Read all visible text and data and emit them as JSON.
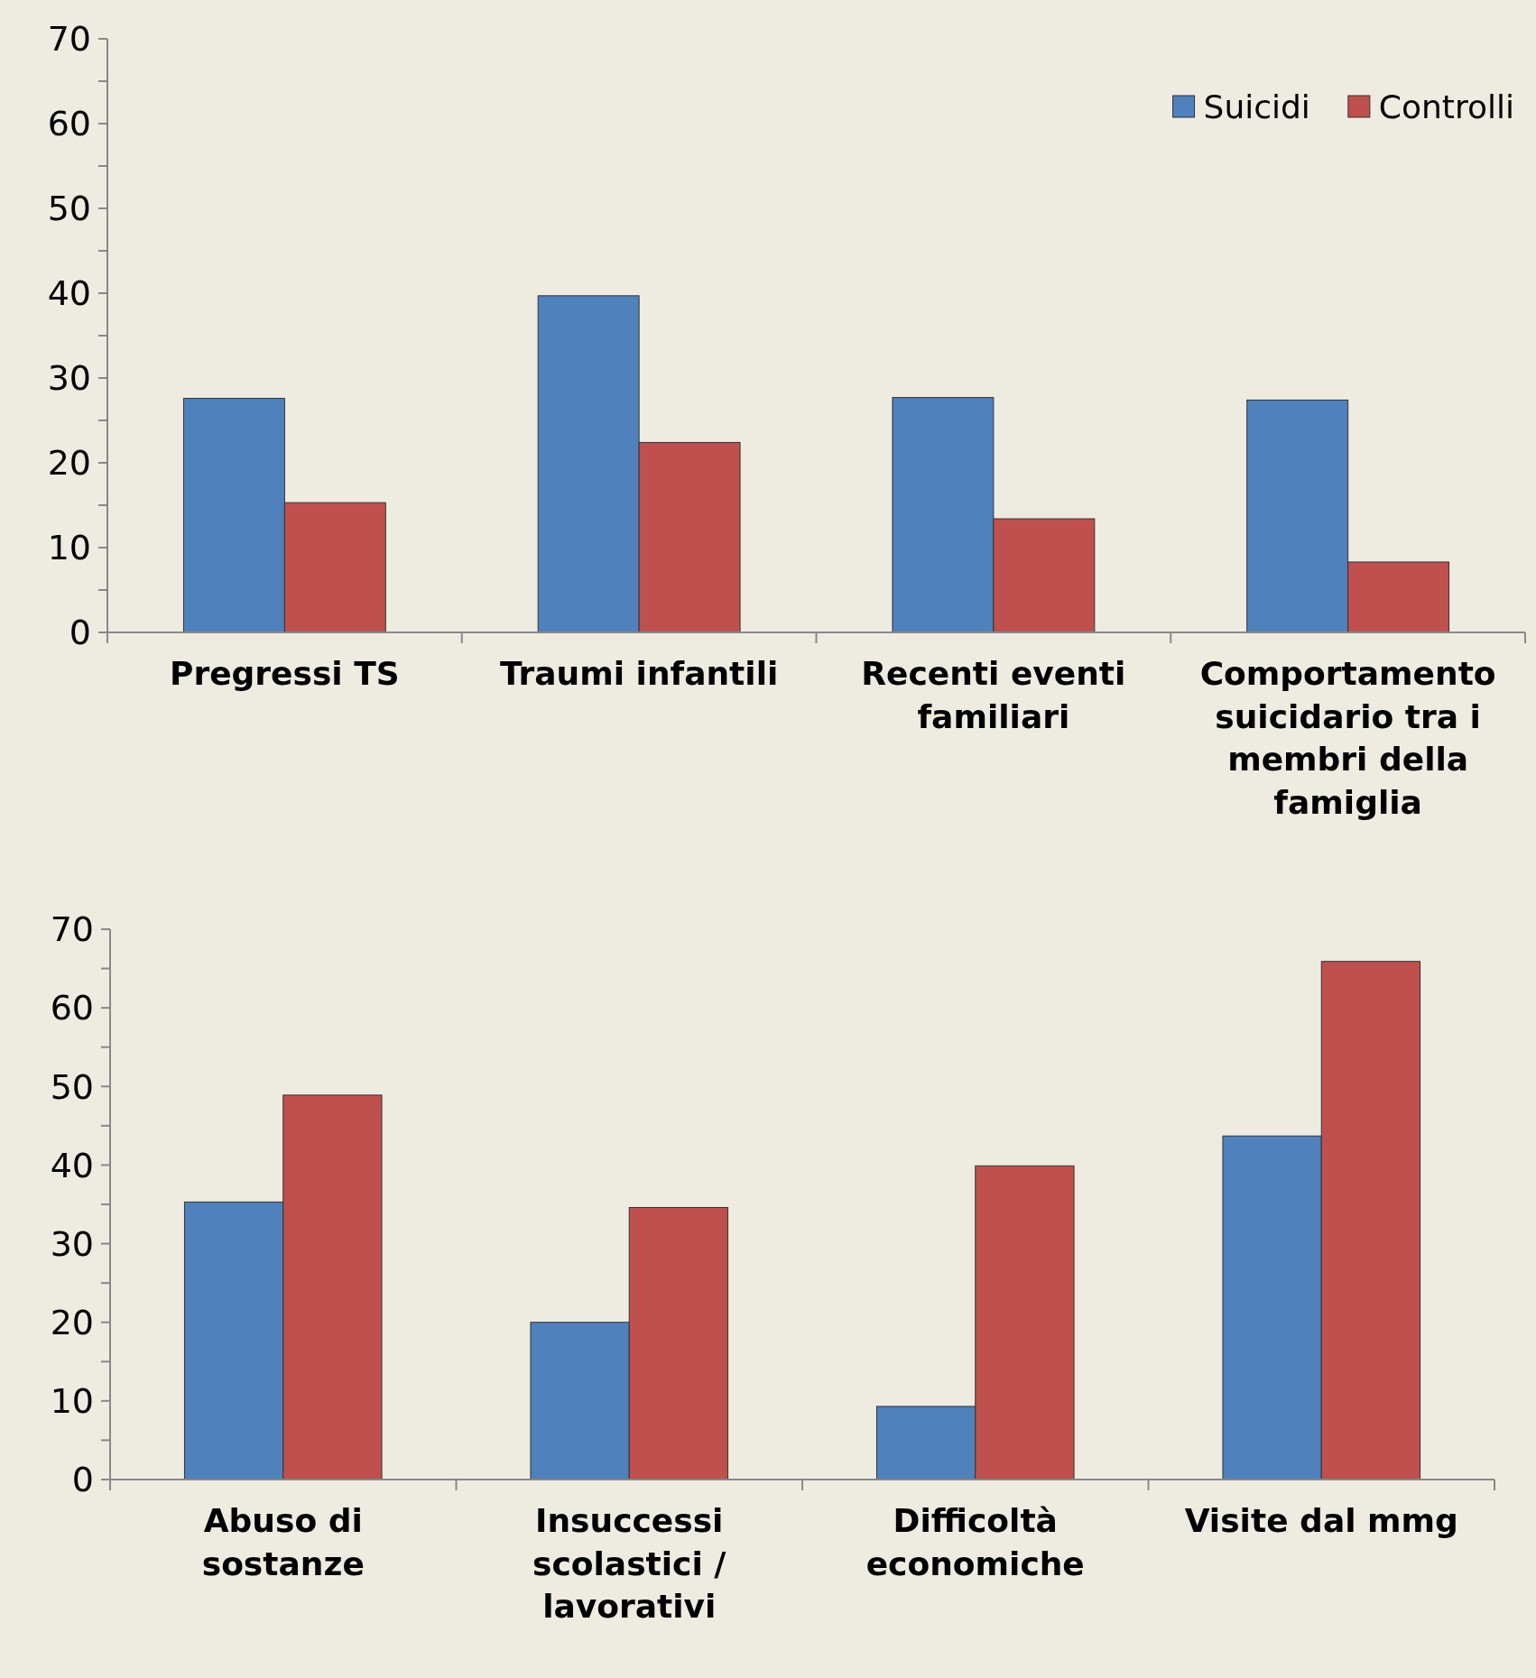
{
  "chart_data": [
    {
      "type": "bar",
      "categories": [
        "Pregressi TS",
        "Traumi infantili",
        "Recenti eventi familiari",
        "Comportamento suicidario tra i membri della famiglia"
      ],
      "series": [
        {
          "name": "Suicidi",
          "color": "#4f81bd",
          "values": [
            27.6,
            39.7,
            27.7,
            27.4
          ]
        },
        {
          "name": "Controlli",
          "color": "#c0504d",
          "values": [
            15.3,
            22.4,
            13.4,
            8.3
          ]
        }
      ],
      "ylim": [
        0,
        70
      ],
      "yticks": [
        0,
        {
          "value": 5,
          "label": null
        },
        10,
        {
          "value": 15,
          "label": null
        },
        20,
        {
          "value": 25,
          "label": null
        },
        30,
        {
          "value": 35,
          "label": null
        },
        40,
        {
          "value": 45,
          "label": null
        },
        50,
        {
          "value": 55,
          "label": null
        },
        60,
        {
          "value": 65,
          "label": null
        },
        70
      ],
      "legend": "top right",
      "grid": false
    },
    {
      "type": "bar",
      "categories": [
        "Abuso di sostanze",
        "Insuccessi scolastici / lavorativi",
        "Difficoltà economiche",
        "Visite dal mmg"
      ],
      "series": [
        {
          "color": "#4f81bd",
          "values": [
            35.3,
            20.0,
            9.3,
            43.7
          ]
        },
        {
          "color": "#c0504d",
          "values": [
            48.9,
            34.6,
            39.9,
            65.9
          ]
        }
      ],
      "ylim": [
        0,
        70
      ],
      "yticks": [
        0,
        {
          "value": 5,
          "label": null
        },
        10,
        {
          "value": 15,
          "label": null
        },
        20,
        {
          "value": 25,
          "label": null
        },
        30,
        {
          "value": 35,
          "label": null
        },
        40,
        {
          "value": 45,
          "label": null
        },
        50,
        {
          "value": 55,
          "label": null
        },
        60,
        {
          "value": 65,
          "label": null
        },
        70
      ],
      "grid": false
    }
  ]
}
